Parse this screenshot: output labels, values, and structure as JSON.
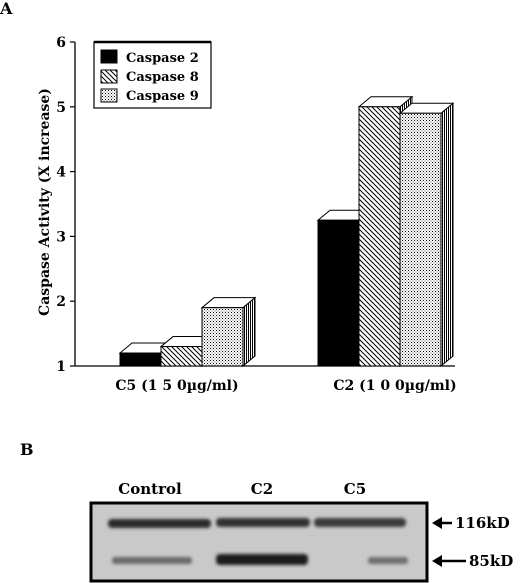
{
  "panel_a": {
    "label": "A",
    "chart_data": {
      "type": "bar",
      "title": "",
      "xlabel": "",
      "ylabel": "Caspase Activity  (X increase)",
      "ylim": [
        1,
        6
      ],
      "yticks": [
        1,
        2,
        3,
        4,
        5,
        6
      ],
      "categories": [
        "C5  (1 5 0µg/ml)",
        "C2  (1 0 0µg/ml)"
      ],
      "series": [
        {
          "name": "Caspase 2",
          "values": [
            1.2,
            3.25
          ]
        },
        {
          "name": "Caspase 8",
          "values": [
            1.3,
            5.0
          ]
        },
        {
          "name": "Caspase 9",
          "values": [
            1.9,
            4.9
          ]
        }
      ],
      "bar_3d": true,
      "legend_position": "top-left",
      "grid": false
    }
  },
  "panel_b": {
    "label": "B",
    "lanes": [
      "Control",
      "C2",
      "C5"
    ],
    "markers": [
      "116kD",
      "85kD"
    ]
  },
  "colors": {
    "ink": "#000000",
    "blot_bg": "#c8c8c8",
    "band": "#2a2a2a"
  }
}
